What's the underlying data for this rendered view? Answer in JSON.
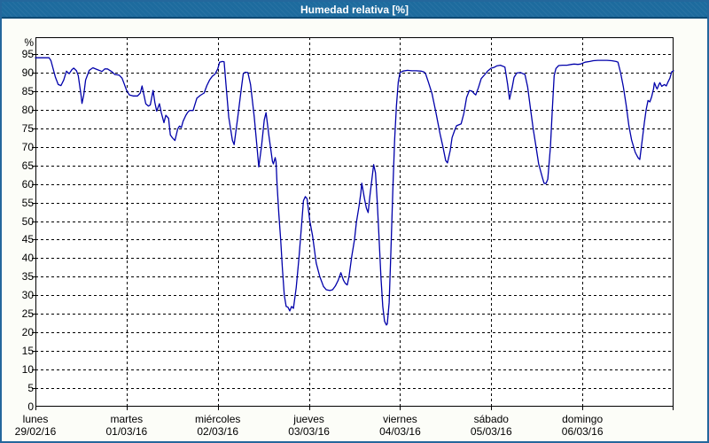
{
  "window": {
    "title": "Humedad relativa [%]"
  },
  "colors": {
    "header_bg": "#1d6b9e",
    "header_border": "#0e4a75",
    "frame": "#24679c",
    "background": "#fcfdf8",
    "plot_bg": "#ffffff",
    "grid": "#000000",
    "axis": "#000000",
    "text": "#000000",
    "title_text": "#ffffff",
    "line": "#0000aa"
  },
  "chart_data": {
    "type": "line",
    "title": "Humedad relativa [%]",
    "xlabel": "",
    "ylabel": "%",
    "ylim": [
      0,
      99.5
    ],
    "xlim_days": [
      0,
      7
    ],
    "grid": {
      "horizontal": "dashed",
      "vertical": "dashed at day boundaries"
    },
    "legend": "none",
    "yticks": [
      0,
      5,
      10,
      15,
      20,
      25,
      30,
      35,
      40,
      45,
      50,
      55,
      60,
      65,
      70,
      75,
      80,
      85,
      90,
      95
    ],
    "days": [
      {
        "name": "lunes",
        "date": "29/02/16"
      },
      {
        "name": "martes",
        "date": "01/03/16"
      },
      {
        "name": "miércoles",
        "date": "02/03/16"
      },
      {
        "name": "jueves",
        "date": "03/03/16"
      },
      {
        "name": "viernes",
        "date": "04/03/16"
      },
      {
        "name": "sábado",
        "date": "05/03/16"
      },
      {
        "name": "domingo",
        "date": "06/03/16"
      }
    ],
    "series": [
      {
        "name": "Humedad relativa",
        "color": "#0000aa",
        "x_unit": "days since lunes 29/02/16 00:00",
        "points": [
          [
            0,
            94
          ],
          [
            0.15,
            94
          ],
          [
            0.17,
            93.2
          ],
          [
            0.22,
            88.7
          ],
          [
            0.25,
            86.8
          ],
          [
            0.28,
            86.5
          ],
          [
            0.31,
            88
          ],
          [
            0.34,
            90.4
          ],
          [
            0.37,
            89.7
          ],
          [
            0.4,
            90.8
          ],
          [
            0.42,
            91.2
          ],
          [
            0.45,
            90.5
          ],
          [
            0.47,
            89.2
          ],
          [
            0.5,
            84
          ],
          [
            0.51,
            81.7
          ],
          [
            0.53,
            84
          ],
          [
            0.55,
            88
          ],
          [
            0.59,
            90.6
          ],
          [
            0.63,
            91.3
          ],
          [
            0.68,
            90.8
          ],
          [
            0.73,
            90.3
          ],
          [
            0.76,
            91
          ],
          [
            0.79,
            91
          ],
          [
            0.84,
            90.2
          ],
          [
            0.87,
            89.5
          ],
          [
            0.92,
            89.3
          ],
          [
            0.95,
            88.5
          ],
          [
            0.97,
            87.2
          ],
          [
            1,
            85.2
          ],
          [
            1.03,
            84
          ],
          [
            1.07,
            83.7
          ],
          [
            1.12,
            83.7
          ],
          [
            1.15,
            84.5
          ],
          [
            1.17,
            86.4
          ],
          [
            1.19,
            84
          ],
          [
            1.21,
            81.6
          ],
          [
            1.24,
            81
          ],
          [
            1.26,
            81.3
          ],
          [
            1.29,
            85.2
          ],
          [
            1.31,
            82
          ],
          [
            1.33,
            79.6
          ],
          [
            1.36,
            81.6
          ],
          [
            1.38,
            79.3
          ],
          [
            1.41,
            76.5
          ],
          [
            1.43,
            78.5
          ],
          [
            1.46,
            77.7
          ],
          [
            1.48,
            73.2
          ],
          [
            1.5,
            72.5
          ],
          [
            1.53,
            71.7
          ],
          [
            1.56,
            74.8
          ],
          [
            1.58,
            75.6
          ],
          [
            1.6,
            75.2
          ],
          [
            1.62,
            76.9
          ],
          [
            1.65,
            78.5
          ],
          [
            1.67,
            79.3
          ],
          [
            1.69,
            79.8
          ],
          [
            1.73,
            79.8
          ],
          [
            1.77,
            83.1
          ],
          [
            1.81,
            83.9
          ],
          [
            1.85,
            84.5
          ],
          [
            1.88,
            86.5
          ],
          [
            1.91,
            88
          ],
          [
            1.94,
            89
          ],
          [
            1.97,
            89.6
          ],
          [
            2,
            91
          ],
          [
            2.02,
            92.8
          ],
          [
            2.05,
            93
          ],
          [
            2.07,
            92.9
          ],
          [
            2.09,
            86.8
          ],
          [
            2.12,
            78
          ],
          [
            2.16,
            71.8
          ],
          [
            2.18,
            70.6
          ],
          [
            2.22,
            78
          ],
          [
            2.26,
            86.1
          ],
          [
            2.28,
            89.7
          ],
          [
            2.3,
            90.1
          ],
          [
            2.33,
            90
          ],
          [
            2.36,
            86.8
          ],
          [
            2.4,
            78
          ],
          [
            2.43,
            70.2
          ],
          [
            2.45,
            64.6
          ],
          [
            2.48,
            70.2
          ],
          [
            2.51,
            77.3
          ],
          [
            2.53,
            79.2
          ],
          [
            2.56,
            73.2
          ],
          [
            2.6,
            66.1
          ],
          [
            2.61,
            65.4
          ],
          [
            2.63,
            67.1
          ],
          [
            2.64,
            65.9
          ],
          [
            2.65,
            60
          ],
          [
            2.67,
            52
          ],
          [
            2.69,
            45
          ],
          [
            2.71,
            37
          ],
          [
            2.73,
            30
          ],
          [
            2.75,
            27
          ],
          [
            2.77,
            26.8
          ],
          [
            2.79,
            25.8
          ],
          [
            2.81,
            27
          ],
          [
            2.83,
            26.5
          ],
          [
            2.86,
            32
          ],
          [
            2.89,
            40
          ],
          [
            2.92,
            49
          ],
          [
            2.94,
            55.5
          ],
          [
            2.96,
            56.6
          ],
          [
            2.98,
            56
          ],
          [
            3.01,
            50
          ],
          [
            3.04,
            46
          ],
          [
            3.08,
            38.7
          ],
          [
            3.12,
            35
          ],
          [
            3.16,
            32.4
          ],
          [
            3.19,
            31.5
          ],
          [
            3.23,
            31.3
          ],
          [
            3.26,
            31.5
          ],
          [
            3.29,
            32.5
          ],
          [
            3.32,
            34
          ],
          [
            3.35,
            36.1
          ],
          [
            3.38,
            34
          ],
          [
            3.4,
            33.2
          ],
          [
            3.42,
            32.8
          ],
          [
            3.44,
            35
          ],
          [
            3.47,
            40.5
          ],
          [
            3.5,
            45
          ],
          [
            3.52,
            49.6
          ],
          [
            3.55,
            54
          ],
          [
            3.57,
            57.7
          ],
          [
            3.58,
            60.2
          ],
          [
            3.61,
            56
          ],
          [
            3.63,
            53.5
          ],
          [
            3.65,
            52.3
          ],
          [
            3.67,
            57
          ],
          [
            3.69,
            61
          ],
          [
            3.71,
            65.2
          ],
          [
            3.73,
            63
          ],
          [
            3.75,
            55
          ],
          [
            3.77,
            45
          ],
          [
            3.79,
            35
          ],
          [
            3.81,
            27
          ],
          [
            3.83,
            23
          ],
          [
            3.85,
            22
          ],
          [
            3.86,
            22.3
          ],
          [
            3.88,
            28
          ],
          [
            3.9,
            42
          ],
          [
            3.92,
            58
          ],
          [
            3.94,
            72
          ],
          [
            3.96,
            81
          ],
          [
            3.98,
            87.5
          ],
          [
            4,
            90
          ],
          [
            4.03,
            90.4
          ],
          [
            4.08,
            90.6
          ],
          [
            4.13,
            90.5
          ],
          [
            4.18,
            90.5
          ],
          [
            4.23,
            90.4
          ],
          [
            4.26,
            90.2
          ],
          [
            4.28,
            89.7
          ],
          [
            4.31,
            87.5
          ],
          [
            4.35,
            84.4
          ],
          [
            4.39,
            79.7
          ],
          [
            4.44,
            73.3
          ],
          [
            4.47,
            70
          ],
          [
            4.5,
            66.3
          ],
          [
            4.52,
            65.7
          ],
          [
            4.55,
            69
          ],
          [
            4.57,
            72.5
          ],
          [
            4.6,
            74.5
          ],
          [
            4.62,
            75.7
          ],
          [
            4.65,
            76
          ],
          [
            4.67,
            76.2
          ],
          [
            4.7,
            79
          ],
          [
            4.73,
            83.3
          ],
          [
            4.76,
            85.2
          ],
          [
            4.79,
            85
          ],
          [
            4.81,
            84.4
          ],
          [
            4.83,
            84
          ],
          [
            4.86,
            86
          ],
          [
            4.89,
            88.4
          ],
          [
            4.93,
            89.5
          ],
          [
            4.96,
            90.4
          ],
          [
            5,
            91.2
          ],
          [
            5.03,
            91.4
          ],
          [
            5.06,
            91.8
          ],
          [
            5.1,
            92
          ],
          [
            5.15,
            91.5
          ],
          [
            5.18,
            86.8
          ],
          [
            5.2,
            82.8
          ],
          [
            5.23,
            86
          ],
          [
            5.25,
            88.7
          ],
          [
            5.28,
            89.9
          ],
          [
            5.32,
            90
          ],
          [
            5.35,
            89.7
          ],
          [
            5.37,
            89.5
          ],
          [
            5.4,
            86.1
          ],
          [
            5.43,
            80.4
          ],
          [
            5.46,
            74.9
          ],
          [
            5.49,
            70.2
          ],
          [
            5.52,
            65.4
          ],
          [
            5.56,
            61.8
          ],
          [
            5.58,
            60.2
          ],
          [
            5.6,
            60.1
          ],
          [
            5.62,
            61.3
          ],
          [
            5.65,
            70
          ],
          [
            5.67,
            80
          ],
          [
            5.69,
            89.2
          ],
          [
            5.71,
            91.1
          ],
          [
            5.74,
            91.9
          ],
          [
            5.78,
            92
          ],
          [
            5.83,
            92
          ],
          [
            5.88,
            92.2
          ],
          [
            5.91,
            92.3
          ],
          [
            5.95,
            92.2
          ],
          [
            5.98,
            92.3
          ],
          [
            6,
            92.5
          ],
          [
            6.03,
            92.8
          ],
          [
            6.08,
            93
          ],
          [
            6.12,
            93.2
          ],
          [
            6.17,
            93.3
          ],
          [
            6.27,
            93.3
          ],
          [
            6.32,
            93.2
          ],
          [
            6.37,
            93
          ],
          [
            6.39,
            92.8
          ],
          [
            6.42,
            89.9
          ],
          [
            6.45,
            86.1
          ],
          [
            6.48,
            81.3
          ],
          [
            6.51,
            75.7
          ],
          [
            6.54,
            71.8
          ],
          [
            6.58,
            68.5
          ],
          [
            6.61,
            67.1
          ],
          [
            6.63,
            66.6
          ],
          [
            6.66,
            72.5
          ],
          [
            6.68,
            76.6
          ],
          [
            6.7,
            80
          ],
          [
            6.72,
            82.5
          ],
          [
            6.74,
            82.1
          ],
          [
            6.76,
            83.5
          ],
          [
            6.78,
            85.6
          ],
          [
            6.79,
            87.3
          ],
          [
            6.81,
            86
          ],
          [
            6.82,
            85.6
          ],
          [
            6.84,
            86.8
          ],
          [
            6.85,
            87.3
          ],
          [
            6.87,
            86.3
          ],
          [
            6.9,
            86.8
          ],
          [
            6.92,
            86.4
          ],
          [
            6.94,
            87.5
          ],
          [
            6.96,
            88.5
          ],
          [
            6.98,
            90.2
          ],
          [
            7,
            90.5
          ]
        ]
      }
    ]
  }
}
